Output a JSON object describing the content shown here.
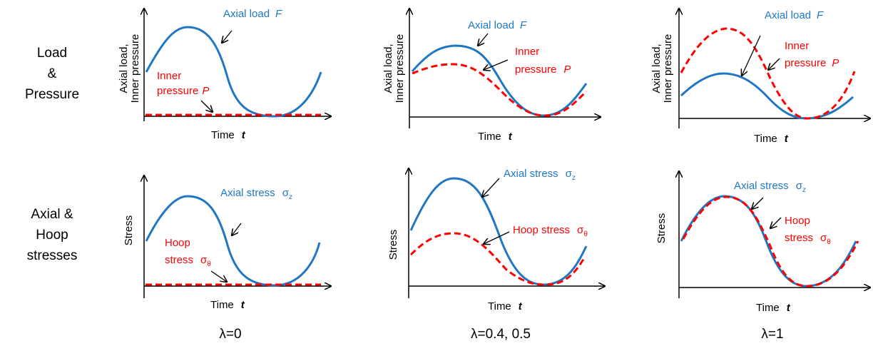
{
  "rows": {
    "load": [
      "Load",
      "&",
      "Pressure"
    ],
    "stress": [
      "Axial &",
      "Hoop",
      "stresses"
    ]
  },
  "lambdas": [
    "λ=0",
    "λ=0.4, 0.5",
    "λ=1"
  ],
  "axis": {
    "time": "Time",
    "t": "t",
    "load_ylabel_1": "Axial load,",
    "load_ylabel_2": "Inner pressure",
    "stress_ylabel": "Stress"
  },
  "curves": {
    "axial_load": "Axial load",
    "F": "F",
    "inner": "Inner",
    "pressure": "pressure",
    "P": "P",
    "axial_stress": "Axial stress",
    "sigma": "σ",
    "z": "z",
    "hoop": "Hoop",
    "stress": "stress",
    "hoop_stress": "Hoop stress",
    "theta": "θ"
  },
  "colors": {
    "axial": "#1f77c4",
    "hoop": "#ff0000",
    "axis": "#000000"
  }
}
